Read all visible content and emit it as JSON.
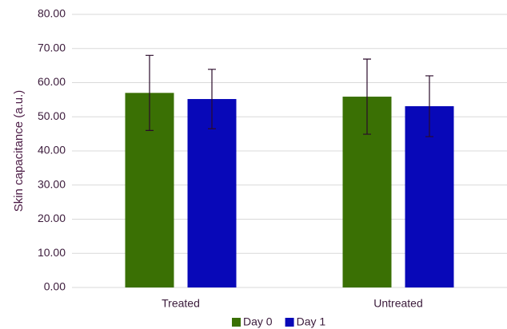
{
  "chart_data": {
    "type": "bar",
    "y_label": "Skin capacitance (a.u.)",
    "categories": [
      "Treated",
      "Untreated"
    ],
    "series": [
      {
        "name": "Day 0",
        "color": "#3a7004",
        "values": [
          57.0,
          55.9
        ],
        "errors": [
          11.0,
          11.0
        ]
      },
      {
        "name": "Day 1",
        "color": "#0808b8",
        "values": [
          55.2,
          53.1
        ],
        "errors": [
          8.7,
          8.9
        ]
      }
    ],
    "ylim": [
      0,
      80
    ],
    "yticks": [
      {
        "value": 0,
        "label": "0.00"
      },
      {
        "value": 10,
        "label": "10.00"
      },
      {
        "value": 20,
        "label": "20.00"
      },
      {
        "value": 30,
        "label": "30.00"
      },
      {
        "value": 40,
        "label": "40.00"
      },
      {
        "value": 50,
        "label": "50.00"
      },
      {
        "value": 60,
        "label": "60.00"
      },
      {
        "value": 70,
        "label": "70.00"
      },
      {
        "value": 80,
        "label": "80.00"
      }
    ],
    "grid": true,
    "legend": "bottom"
  }
}
